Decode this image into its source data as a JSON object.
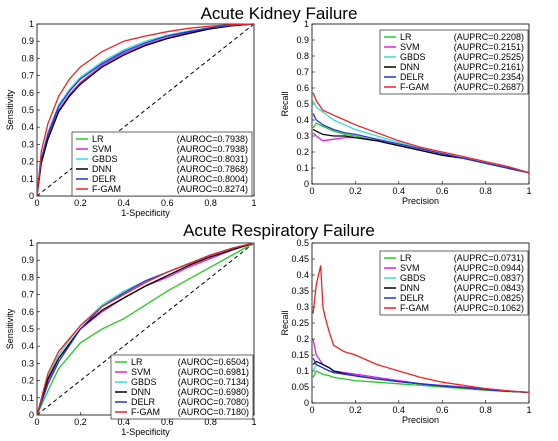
{
  "titles": {
    "top": "Acute Kidney Failure",
    "bottom": "Acute Respiratory Failure"
  },
  "colors": {
    "LR": "#22cc22",
    "SVM": "#dd22dd",
    "GBDS": "#33dddd",
    "DNN": "#000000",
    "DELR": "#2233dd",
    "F-GAM": "#ee2222"
  },
  "chart_data": [
    {
      "id": "akf-roc",
      "type": "line",
      "xlabel": "1-Specificity",
      "ylabel": "Sensitivity",
      "xlim": [
        0,
        1
      ],
      "ylim": [
        0,
        1
      ],
      "xticks": [
        "0",
        "0.2",
        "0.4",
        "0.6",
        "0.8",
        "1"
      ],
      "yticks": [
        "0",
        "0.1",
        "0.2",
        "0.3",
        "0.4",
        "0.5",
        "0.6",
        "0.7",
        "0.8",
        "0.9",
        "1"
      ],
      "legend_position": "bottom-right",
      "diagonal": true,
      "series": [
        {
          "name": "LR",
          "metric": "(AUROC=0.7938)",
          "x": [
            0,
            0.02,
            0.05,
            0.1,
            0.15,
            0.2,
            0.3,
            0.4,
            0.5,
            0.6,
            0.7,
            0.8,
            0.9,
            1
          ],
          "y": [
            0,
            0.2,
            0.34,
            0.5,
            0.59,
            0.66,
            0.76,
            0.83,
            0.88,
            0.92,
            0.95,
            0.975,
            0.99,
            1
          ]
        },
        {
          "name": "SVM",
          "metric": "(AUROC=0.7938)",
          "x": [
            0,
            0.02,
            0.05,
            0.1,
            0.15,
            0.2,
            0.3,
            0.4,
            0.5,
            0.6,
            0.7,
            0.8,
            0.9,
            1
          ],
          "y": [
            0,
            0.2,
            0.34,
            0.5,
            0.59,
            0.66,
            0.76,
            0.83,
            0.88,
            0.92,
            0.95,
            0.975,
            0.99,
            1
          ]
        },
        {
          "name": "GBDS",
          "metric": "(AUROC=0.8031)",
          "x": [
            0,
            0.02,
            0.05,
            0.1,
            0.15,
            0.2,
            0.3,
            0.4,
            0.5,
            0.6,
            0.7,
            0.8,
            0.9,
            1
          ],
          "y": [
            0,
            0.22,
            0.37,
            0.53,
            0.62,
            0.69,
            0.78,
            0.85,
            0.9,
            0.935,
            0.96,
            0.98,
            0.993,
            1
          ]
        },
        {
          "name": "DNN",
          "metric": "(AUROC=0.7868)",
          "x": [
            0,
            0.02,
            0.05,
            0.1,
            0.15,
            0.2,
            0.3,
            0.4,
            0.5,
            0.6,
            0.7,
            0.8,
            0.9,
            1
          ],
          "y": [
            0,
            0.19,
            0.33,
            0.49,
            0.58,
            0.65,
            0.75,
            0.82,
            0.875,
            0.915,
            0.945,
            0.972,
            0.99,
            1
          ]
        },
        {
          "name": "DELR",
          "metric": "(AUROC=0.8004)",
          "x": [
            0,
            0.02,
            0.05,
            0.1,
            0.15,
            0.2,
            0.3,
            0.4,
            0.5,
            0.6,
            0.7,
            0.8,
            0.9,
            1
          ],
          "y": [
            0,
            0.21,
            0.36,
            0.52,
            0.61,
            0.68,
            0.77,
            0.84,
            0.89,
            0.93,
            0.955,
            0.978,
            0.992,
            1
          ]
        },
        {
          "name": "F-GAM",
          "metric": "(AUROC=0.8274)",
          "x": [
            0,
            0.02,
            0.05,
            0.1,
            0.15,
            0.2,
            0.3,
            0.4,
            0.5,
            0.6,
            0.7,
            0.8,
            0.9,
            1
          ],
          "y": [
            0,
            0.26,
            0.42,
            0.58,
            0.68,
            0.75,
            0.84,
            0.9,
            0.93,
            0.955,
            0.975,
            0.988,
            0.996,
            1
          ]
        }
      ]
    },
    {
      "id": "akf-pr",
      "type": "line",
      "xlabel": "Precision",
      "ylabel": "Recall",
      "xlim": [
        0,
        1
      ],
      "ylim": [
        0,
        1
      ],
      "xticks": [
        "0",
        "0.2",
        "0.4",
        "0.6",
        "0.8",
        "1"
      ],
      "yticks": [
        "0",
        "0.1",
        "0.2",
        "0.3",
        "0.4",
        "0.5",
        "0.6",
        "0.7",
        "0.8",
        "0.9",
        "1"
      ],
      "legend_position": "top-right",
      "series": [
        {
          "name": "LR",
          "metric": "(AUPRC=0.2208)",
          "x": [
            0.005,
            0.02,
            0.05,
            0.1,
            0.15,
            0.2,
            0.3,
            0.4,
            0.5,
            0.6,
            0.7,
            0.8,
            0.9,
            1
          ],
          "y": [
            0.35,
            0.38,
            0.36,
            0.33,
            0.31,
            0.3,
            0.27,
            0.24,
            0.21,
            0.18,
            0.16,
            0.13,
            0.1,
            0.07
          ]
        },
        {
          "name": "SVM",
          "metric": "(AUPRC=0.2151)",
          "x": [
            0.005,
            0.02,
            0.05,
            0.1,
            0.15,
            0.2,
            0.3,
            0.4,
            0.5,
            0.6,
            0.7,
            0.8,
            0.9,
            1
          ],
          "y": [
            0.32,
            0.3,
            0.27,
            0.28,
            0.29,
            0.29,
            0.27,
            0.24,
            0.21,
            0.18,
            0.16,
            0.13,
            0.1,
            0.07
          ]
        },
        {
          "name": "GBDS",
          "metric": "(AUPRC=0.2525)",
          "x": [
            0.005,
            0.02,
            0.05,
            0.1,
            0.15,
            0.2,
            0.3,
            0.4,
            0.5,
            0.6,
            0.7,
            0.8,
            0.9,
            1
          ],
          "y": [
            0.52,
            0.48,
            0.45,
            0.4,
            0.37,
            0.34,
            0.3,
            0.26,
            0.22,
            0.19,
            0.16,
            0.13,
            0.1,
            0.07
          ]
        },
        {
          "name": "DNN",
          "metric": "(AUPRC=0.2161)",
          "x": [
            0.005,
            0.02,
            0.05,
            0.1,
            0.15,
            0.2,
            0.3,
            0.4,
            0.5,
            0.6,
            0.7,
            0.8,
            0.9,
            1
          ],
          "y": [
            0.34,
            0.33,
            0.31,
            0.3,
            0.3,
            0.29,
            0.27,
            0.24,
            0.21,
            0.18,
            0.16,
            0.13,
            0.1,
            0.07
          ]
        },
        {
          "name": "DELR",
          "metric": "(AUPRC=0.2354)",
          "x": [
            0.005,
            0.02,
            0.05,
            0.1,
            0.15,
            0.2,
            0.3,
            0.4,
            0.5,
            0.6,
            0.7,
            0.8,
            0.9,
            1
          ],
          "y": [
            0.44,
            0.4,
            0.37,
            0.34,
            0.32,
            0.31,
            0.28,
            0.25,
            0.22,
            0.19,
            0.16,
            0.13,
            0.1,
            0.07
          ]
        },
        {
          "name": "F-GAM",
          "metric": "(AUPRC=0.2687)",
          "x": [
            0.005,
            0.02,
            0.05,
            0.1,
            0.15,
            0.2,
            0.3,
            0.4,
            0.5,
            0.6,
            0.7,
            0.8,
            0.9,
            1
          ],
          "y": [
            0.57,
            0.52,
            0.46,
            0.43,
            0.4,
            0.37,
            0.32,
            0.27,
            0.23,
            0.2,
            0.17,
            0.14,
            0.11,
            0.07
          ]
        }
      ]
    },
    {
      "id": "arf-roc",
      "type": "line",
      "xlabel": "1-Specificity",
      "ylabel": "Sensitivity",
      "xlim": [
        0,
        1
      ],
      "ylim": [
        0,
        1
      ],
      "xticks": [
        "0",
        "0.2",
        "0.4",
        "0.6",
        "0.8",
        "1"
      ],
      "yticks": [
        "0",
        "0.1",
        "0.2",
        "0.3",
        "0.4",
        "0.5",
        "0.6",
        "0.7",
        "0.8",
        "0.9",
        "1"
      ],
      "legend_position": "bottom-right",
      "diagonal": true,
      "series": [
        {
          "name": "LR",
          "metric": "(AUROC=0.6504)",
          "x": [
            0,
            0.05,
            0.1,
            0.2,
            0.3,
            0.4,
            0.5,
            0.6,
            0.7,
            0.8,
            0.9,
            1
          ],
          "y": [
            0,
            0.14,
            0.27,
            0.42,
            0.5,
            0.56,
            0.64,
            0.72,
            0.79,
            0.86,
            0.93,
            1
          ]
        },
        {
          "name": "SVM",
          "metric": "(AUROC=0.6981)",
          "x": [
            0,
            0.05,
            0.1,
            0.2,
            0.3,
            0.4,
            0.5,
            0.6,
            0.7,
            0.8,
            0.9,
            1
          ],
          "y": [
            0,
            0.2,
            0.33,
            0.5,
            0.6,
            0.68,
            0.75,
            0.8,
            0.86,
            0.91,
            0.96,
            1
          ]
        },
        {
          "name": "GBDS",
          "metric": "(AUROC=0.7134)",
          "x": [
            0,
            0.05,
            0.1,
            0.2,
            0.3,
            0.4,
            0.5,
            0.6,
            0.7,
            0.8,
            0.9,
            1
          ],
          "y": [
            0,
            0.22,
            0.35,
            0.52,
            0.64,
            0.72,
            0.78,
            0.83,
            0.88,
            0.93,
            0.97,
            1
          ]
        },
        {
          "name": "DNN",
          "metric": "(AUROC=0.6980)",
          "x": [
            0,
            0.05,
            0.1,
            0.2,
            0.3,
            0.4,
            0.5,
            0.6,
            0.7,
            0.8,
            0.9,
            1
          ],
          "y": [
            0,
            0.21,
            0.33,
            0.5,
            0.61,
            0.68,
            0.75,
            0.81,
            0.87,
            0.92,
            0.96,
            1
          ]
        },
        {
          "name": "DELR",
          "metric": "(AUROC=0.7080)",
          "x": [
            0,
            0.05,
            0.1,
            0.2,
            0.3,
            0.4,
            0.5,
            0.6,
            0.7,
            0.8,
            0.9,
            1
          ],
          "y": [
            0,
            0.18,
            0.31,
            0.5,
            0.63,
            0.71,
            0.78,
            0.83,
            0.88,
            0.93,
            0.97,
            1
          ]
        },
        {
          "name": "F-GAM",
          "metric": "(AUROC=0.7180)",
          "x": [
            0,
            0.05,
            0.1,
            0.2,
            0.3,
            0.4,
            0.5,
            0.6,
            0.7,
            0.8,
            0.9,
            1
          ],
          "y": [
            0,
            0.24,
            0.37,
            0.52,
            0.63,
            0.7,
            0.77,
            0.83,
            0.88,
            0.93,
            0.97,
            1
          ]
        }
      ]
    },
    {
      "id": "arf-pr",
      "type": "line",
      "xlabel": "Precision",
      "ylabel": "Recall",
      "xlim": [
        0,
        1
      ],
      "ylim": [
        0,
        0.5
      ],
      "xticks": [
        "0",
        "0.2",
        "0.4",
        "0.6",
        "0.8",
        "1"
      ],
      "yticks": [
        "0",
        "0.05",
        "0.1",
        "0.15",
        "0.2",
        "0.25",
        "0.3",
        "0.35",
        "0.4",
        "0.45",
        "0.5"
      ],
      "legend_position": "top-right",
      "series": [
        {
          "name": "LR",
          "metric": "(AUPRC=0.0731)",
          "x": [
            0.005,
            0.02,
            0.05,
            0.08,
            0.1,
            0.15,
            0.2,
            0.3,
            0.4,
            0.5,
            0.6,
            0.7,
            0.8,
            0.9,
            1
          ],
          "y": [
            0.08,
            0.1,
            0.09,
            0.085,
            0.08,
            0.075,
            0.07,
            0.065,
            0.06,
            0.055,
            0.05,
            0.045,
            0.04,
            0.036,
            0.033
          ]
        },
        {
          "name": "SVM",
          "metric": "(AUPRC=0.0944)",
          "x": [
            0.005,
            0.02,
            0.05,
            0.08,
            0.1,
            0.15,
            0.2,
            0.3,
            0.4,
            0.5,
            0.6,
            0.7,
            0.8,
            0.9,
            1
          ],
          "y": [
            0.2,
            0.15,
            0.12,
            0.11,
            0.1,
            0.095,
            0.09,
            0.08,
            0.07,
            0.06,
            0.055,
            0.05,
            0.045,
            0.038,
            0.033
          ]
        },
        {
          "name": "GBDS",
          "metric": "(AUPRC=0.0837)",
          "x": [
            0.005,
            0.02,
            0.05,
            0.08,
            0.1,
            0.15,
            0.2,
            0.3,
            0.4,
            0.5,
            0.6,
            0.7,
            0.8,
            0.9,
            1
          ],
          "y": [
            0.1,
            0.12,
            0.11,
            0.1,
            0.095,
            0.09,
            0.085,
            0.075,
            0.067,
            0.06,
            0.053,
            0.048,
            0.042,
            0.037,
            0.033
          ]
        },
        {
          "name": "DNN",
          "metric": "(AUPRC=0.0843)",
          "x": [
            0.005,
            0.02,
            0.05,
            0.08,
            0.1,
            0.15,
            0.2,
            0.3,
            0.4,
            0.5,
            0.6,
            0.7,
            0.8,
            0.9,
            1
          ],
          "y": [
            0.12,
            0.13,
            0.12,
            0.11,
            0.1,
            0.092,
            0.085,
            0.075,
            0.067,
            0.06,
            0.053,
            0.048,
            0.042,
            0.037,
            0.033
          ]
        },
        {
          "name": "DELR",
          "metric": "(AUPRC=0.0825)",
          "x": [
            0.005,
            0.02,
            0.05,
            0.08,
            0.1,
            0.15,
            0.2,
            0.3,
            0.4,
            0.5,
            0.6,
            0.7,
            0.8,
            0.9,
            1
          ],
          "y": [
            0.14,
            0.12,
            0.11,
            0.1,
            0.095,
            0.09,
            0.085,
            0.075,
            0.067,
            0.06,
            0.053,
            0.048,
            0.042,
            0.037,
            0.033
          ]
        },
        {
          "name": "F-GAM",
          "metric": "(AUPRC=0.1062)",
          "x": [
            0.005,
            0.02,
            0.04,
            0.05,
            0.06,
            0.08,
            0.1,
            0.15,
            0.2,
            0.3,
            0.4,
            0.5,
            0.6,
            0.7,
            0.8,
            0.9,
            1
          ],
          "y": [
            0.28,
            0.37,
            0.43,
            0.3,
            0.27,
            0.22,
            0.18,
            0.16,
            0.15,
            0.12,
            0.1,
            0.08,
            0.065,
            0.055,
            0.045,
            0.038,
            0.033
          ]
        }
      ]
    }
  ]
}
